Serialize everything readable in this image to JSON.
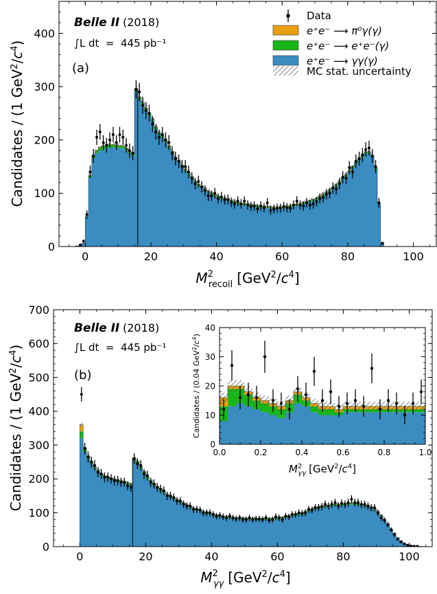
{
  "colors": {
    "gg": "#3a8cc1",
    "ee": "#19b519",
    "pi0": "#e8a012",
    "hatch": "#555555",
    "data": "#000000"
  },
  "legend": {
    "data": "Data",
    "pi0": "e⁺e⁻ ⟶ π⁰γ(γ)",
    "ee": "e⁺e⁻ ⟶ e⁺e⁻(γ)",
    "gg": "e⁺e⁻ ⟶ γγ(γ)",
    "mcstat": "MC stat. uncertainty"
  },
  "chart_data": [
    {
      "type": "bar",
      "panel_label": "(a)",
      "experiment": "Belle II",
      "year": "(2018)",
      "luminosity": "∫L dt  =  445 pb⁻¹",
      "xlabel": "M²recoil [GeV²/c⁴]",
      "ylabel": "Candidates / (1 GeV²/c⁴)",
      "xlim": [
        -8,
        107
      ],
      "ylim": [
        0,
        460
      ],
      "xticks": [
        0,
        20,
        40,
        60,
        80,
        100
      ],
      "yticks": [
        0,
        100,
        200,
        300,
        400
      ],
      "bin_width": 1,
      "divider_x": 16,
      "legend_position": "top-right",
      "series": [
        {
          "name": "e⁺e⁻ ⟶ γγ(γ)",
          "key": "gg",
          "x_start": -3,
          "values": [
            1,
            2,
            6,
            55,
            130,
            165,
            175,
            180,
            182,
            185,
            186,
            186,
            186,
            185,
            184,
            180,
            175,
            170,
            290,
            275,
            265,
            255,
            245,
            235,
            220,
            210,
            205,
            195,
            185,
            175,
            165,
            158,
            150,
            142,
            135,
            128,
            120,
            114,
            110,
            106,
            102,
            98,
            95,
            92,
            90,
            88,
            86,
            84,
            82,
            80,
            78,
            78,
            77,
            76,
            75,
            74,
            73,
            73,
            72,
            72,
            71,
            71,
            72,
            72,
            73,
            74,
            75,
            77,
            78,
            80,
            82,
            84,
            86,
            88,
            92,
            95,
            100,
            104,
            108,
            113,
            120,
            126,
            132,
            140,
            148,
            155,
            162,
            168,
            175,
            175,
            168,
            145,
            80,
            8
          ]
        },
        {
          "name": "e⁺e⁻ ⟶ e⁺e⁻(γ)",
          "key": "ee",
          "x_start": -3,
          "values": [
            0,
            0,
            0,
            1,
            3,
            5,
            5,
            6,
            6,
            5,
            5,
            5,
            4,
            4,
            4,
            4,
            3,
            3,
            5,
            5,
            5,
            4,
            4,
            4,
            4,
            3,
            3,
            3,
            3,
            3,
            2,
            2,
            2,
            2,
            2,
            2,
            2,
            2,
            2,
            2,
            2,
            2,
            2,
            2,
            2,
            2,
            2,
            2,
            2,
            2,
            2,
            2,
            2,
            2,
            2,
            2,
            2,
            2,
            2,
            2,
            2,
            2,
            2,
            2,
            2,
            2,
            2,
            2,
            2,
            2,
            2,
            2,
            2,
            2,
            2,
            2,
            2,
            2,
            2,
            2,
            2,
            2,
            2,
            2,
            2,
            2,
            2,
            2,
            2,
            2,
            2,
            2,
            1,
            0
          ]
        },
        {
          "name": "e⁺e⁻ ⟶ π⁰γ(γ)",
          "key": "pi0",
          "x_start": -3,
          "values": [
            0,
            0,
            0,
            0,
            1,
            1,
            1,
            1,
            1,
            1,
            1,
            1,
            1,
            1,
            1,
            1,
            1,
            1,
            1,
            1,
            1,
            1,
            1,
            1,
            1,
            1,
            1,
            1,
            1,
            1,
            1,
            1,
            1,
            1,
            1,
            1,
            1,
            1,
            1,
            1,
            1,
            1,
            1,
            1,
            1,
            1,
            1,
            1,
            1,
            1,
            1,
            1,
            1,
            1,
            1,
            1,
            1,
            1,
            1,
            1,
            1,
            1,
            1,
            1,
            1,
            1,
            1,
            1,
            1,
            1,
            1,
            1,
            1,
            1,
            1,
            1,
            1,
            1,
            1,
            1,
            1,
            1,
            1,
            1,
            1,
            1,
            1,
            1,
            1,
            1,
            1,
            1,
            0,
            0
          ]
        }
      ],
      "data_points": {
        "name": "Data",
        "x_start": -3,
        "values": [
          0,
          3,
          10,
          60,
          140,
          170,
          205,
          215,
          195,
          190,
          200,
          210,
          195,
          210,
          205,
          190,
          180,
          175,
          295,
          290,
          265,
          255,
          250,
          230,
          215,
          205,
          210,
          200,
          195,
          175,
          165,
          160,
          150,
          150,
          140,
          128,
          118,
          122,
          112,
          105,
          95,
          95,
          100,
          90,
          93,
          88,
          88,
          83,
          80,
          85,
          80,
          85,
          78,
          75,
          76,
          71,
          76,
          73,
          82,
          68,
          70,
          72,
          72,
          75,
          73,
          72,
          78,
          85,
          78,
          76,
          82,
          78,
          80,
          84,
          90,
          92,
          98,
          100,
          110,
          108,
          118,
          130,
          128,
          148,
          140,
          160,
          165,
          172,
          182,
          185,
          170,
          150,
          82,
          6
        ]
      }
    },
    {
      "type": "bar",
      "panel_label": "(b)",
      "experiment": "Belle II",
      "year": "(2018)",
      "luminosity": "∫L dt  =  445 pb⁻¹",
      "xlabel": "M²γγ [GeV²/c⁴]",
      "ylabel": "Candidates / (1 GeV²/c⁴)",
      "xlim": [
        -8,
        107
      ],
      "ylim": [
        0,
        700
      ],
      "xticks": [
        0,
        20,
        40,
        60,
        80,
        100
      ],
      "yticks": [
        0,
        100,
        200,
        300,
        400,
        500,
        600,
        700
      ],
      "bin_width": 1,
      "divider_x": 16,
      "series": [
        {
          "name": "e⁺e⁻ ⟶ γγ(γ)",
          "key": "gg",
          "x_start": 0,
          "values": [
            320,
            280,
            260,
            245,
            230,
            220,
            210,
            205,
            200,
            198,
            195,
            192,
            190,
            188,
            184,
            180,
            255,
            245,
            230,
            215,
            200,
            190,
            180,
            172,
            165,
            158,
            150,
            145,
            140,
            135,
            130,
            125,
            120,
            115,
            110,
            108,
            105,
            100,
            98,
            95,
            93,
            90,
            88,
            86,
            85,
            84,
            83,
            82,
            82,
            81,
            80,
            80,
            80,
            80,
            80,
            80,
            80,
            80,
            80,
            81,
            82,
            84,
            86,
            88,
            90,
            92,
            94,
            96,
            100,
            104,
            108,
            112,
            114,
            116,
            118,
            119,
            120,
            121,
            122,
            122,
            123,
            124,
            125,
            124,
            123,
            122,
            120,
            117,
            113,
            108,
            100,
            90,
            78,
            65,
            50,
            38,
            26,
            16,
            10,
            6,
            3,
            2,
            1,
            1,
            0
          ]
        },
        {
          "name": "e⁺e⁻ ⟶ e⁺e⁻(γ)",
          "key": "ee",
          "x_start": 0,
          "values": [
            20,
            10,
            6,
            5,
            5,
            5,
            4,
            4,
            4,
            4,
            4,
            4,
            4,
            4,
            4,
            4,
            6,
            6,
            6,
            6,
            6,
            5,
            5,
            5,
            5,
            4,
            4,
            4,
            4,
            4,
            4,
            3,
            3,
            3,
            3,
            3,
            3,
            3,
            3,
            3,
            3,
            3,
            3,
            3,
            3,
            3,
            3,
            3,
            3,
            3,
            3,
            3,
            3,
            3,
            3,
            3,
            3,
            3,
            3,
            3,
            3,
            3,
            3,
            3,
            3,
            3,
            3,
            3,
            3,
            3,
            3,
            3,
            3,
            3,
            3,
            3,
            3,
            3,
            3,
            3,
            3,
            3,
            3,
            3,
            3,
            3,
            3,
            3,
            3,
            3,
            3,
            3,
            2,
            2,
            2,
            2,
            1,
            1,
            0,
            0,
            0,
            0,
            0,
            0,
            0
          ]
        },
        {
          "name": "e⁺e⁻ ⟶ π⁰γ(γ)",
          "key": "pi0",
          "x_start": 0,
          "values": [
            20,
            3,
            2,
            1,
            1,
            1,
            1,
            1,
            1,
            1,
            1,
            1,
            1,
            1,
            1,
            1,
            1,
            1,
            1,
            1,
            1,
            1,
            1,
            1,
            1,
            1,
            1,
            1,
            1,
            1,
            1,
            1,
            1,
            1,
            1,
            1,
            1,
            1,
            1,
            1,
            1,
            1,
            1,
            1,
            1,
            1,
            1,
            1,
            1,
            1,
            1,
            1,
            1,
            1,
            1,
            1,
            1,
            1,
            1,
            1,
            1,
            1,
            1,
            1,
            1,
            1,
            1,
            1,
            1,
            1,
            1,
            1,
            1,
            1,
            1,
            1,
            1,
            1,
            1,
            1,
            1,
            1,
            1,
            1,
            1,
            1,
            1,
            1,
            1,
            1,
            1,
            1,
            0,
            0,
            0,
            0,
            0,
            0,
            0,
            0,
            0,
            0,
            0,
            0,
            0
          ]
        }
      ],
      "data_points": {
        "name": "Data",
        "x_start": 0,
        "values": [
          450,
          290,
          265,
          250,
          240,
          220,
          215,
          205,
          205,
          200,
          195,
          195,
          190,
          190,
          180,
          175,
          260,
          245,
          240,
          215,
          210,
          190,
          185,
          175,
          170,
          165,
          150,
          150,
          145,
          135,
          135,
          125,
          120,
          120,
          110,
          110,
          108,
          100,
          100,
          100,
          95,
          90,
          92,
          88,
          85,
          90,
          85,
          82,
          85,
          80,
          80,
          85,
          80,
          82,
          82,
          80,
          85,
          78,
          80,
          88,
          85,
          80,
          90,
          88,
          95,
          95,
          100,
          98,
          100,
          110,
          108,
          115,
          115,
          118,
          125,
          120,
          125,
          130,
          120,
          128,
          125,
          130,
          140,
          130,
          130,
          125,
          125,
          120,
          115,
          115,
          100,
          85,
          78,
          65,
          50,
          35,
          22,
          14,
          8,
          4,
          2,
          1,
          1,
          0,
          0
        ]
      }
    },
    {
      "type": "bar",
      "panel_label": "inset",
      "xlabel": "M²γγ [GeV²/c⁴]",
      "ylabel": "Candidates / (0.04 GeV²/c⁴)",
      "xlim": [
        0,
        1.0
      ],
      "ylim": [
        0,
        40
      ],
      "xticks": [
        0.0,
        0.2,
        0.4,
        0.6,
        0.8,
        1.0
      ],
      "yticks": [
        0,
        10,
        20,
        30,
        40
      ],
      "bin_width": 0.04,
      "series": [
        {
          "name": "e⁺e⁻ ⟶ γγ(γ)",
          "key": "gg",
          "x_start": 0,
          "values": [
            8,
            13,
            14,
            13,
            12,
            11,
            10,
            9,
            11,
            14,
            13,
            11,
            10,
            10,
            10,
            11,
            11,
            11,
            11,
            11,
            11,
            11,
            11,
            11,
            11
          ]
        },
        {
          "name": "e⁺e⁻ ⟶ e⁺e⁻(γ)",
          "key": "ee",
          "x_start": 0,
          "values": [
            5,
            6,
            5,
            4,
            3,
            3,
            3,
            3,
            3,
            3,
            2,
            2,
            2,
            2,
            1,
            1,
            1,
            1,
            1,
            1,
            1,
            1,
            1,
            1,
            1
          ]
        },
        {
          "name": "e⁺e⁻ ⟶ π⁰γ(γ)",
          "key": "pi0",
          "x_start": 0,
          "values": [
            3,
            1,
            1,
            1,
            1,
            1,
            1,
            1,
            1,
            1,
            1,
            1,
            1,
            1,
            1,
            1,
            1,
            1,
            1,
            1,
            1,
            1,
            1,
            1,
            1
          ]
        }
      ],
      "data_points": {
        "name": "Data",
        "x_start": 0,
        "values": [
          12,
          27,
          16,
          17,
          16,
          30,
          15,
          14,
          12,
          19,
          17,
          25,
          15,
          18,
          13,
          14,
          15,
          13,
          26,
          12,
          15,
          14,
          10,
          14,
          18
        ]
      }
    }
  ]
}
